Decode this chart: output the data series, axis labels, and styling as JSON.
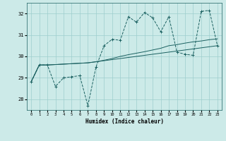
{
  "xlabel": "Humidex (Indice chaleur)",
  "xlim": [
    -0.5,
    23.5
  ],
  "ylim": [
    27.5,
    32.5
  ],
  "yticks": [
    28,
    29,
    30,
    31,
    32
  ],
  "xticks": [
    0,
    1,
    2,
    3,
    4,
    5,
    6,
    7,
    8,
    9,
    10,
    11,
    12,
    13,
    14,
    15,
    16,
    17,
    18,
    19,
    20,
    21,
    22,
    23
  ],
  "bg_color": "#cceae8",
  "grid_color": "#9ecece",
  "line_color": "#1a6060",
  "line1_x": [
    0,
    1,
    2,
    3,
    4,
    5,
    6,
    7,
    8,
    9,
    10,
    11,
    12,
    13,
    14,
    15,
    16,
    17,
    18,
    19,
    20,
    21,
    22,
    23
  ],
  "line1_y": [
    28.8,
    29.6,
    29.6,
    28.6,
    29.0,
    29.05,
    29.1,
    27.7,
    29.5,
    30.5,
    30.8,
    30.75,
    31.85,
    31.6,
    32.05,
    31.8,
    31.15,
    31.85,
    30.2,
    30.1,
    30.05,
    32.1,
    32.15,
    30.5
  ],
  "line2_x": [
    0,
    1,
    2,
    3,
    4,
    5,
    6,
    7,
    8,
    9,
    10,
    11,
    12,
    13,
    14,
    15,
    16,
    17,
    18,
    19,
    20,
    21,
    22,
    23
  ],
  "line2_y": [
    28.82,
    29.6,
    29.6,
    29.62,
    29.64,
    29.66,
    29.68,
    29.7,
    29.75,
    29.82,
    29.9,
    30.0,
    30.08,
    30.15,
    30.22,
    30.3,
    30.38,
    30.5,
    30.55,
    30.62,
    30.68,
    30.72,
    30.78,
    30.82
  ],
  "line3_x": [
    0,
    1,
    2,
    3,
    4,
    5,
    6,
    7,
    23
  ],
  "line3_y": [
    28.82,
    29.6,
    29.6,
    29.62,
    29.64,
    29.66,
    29.68,
    29.7,
    30.5
  ]
}
